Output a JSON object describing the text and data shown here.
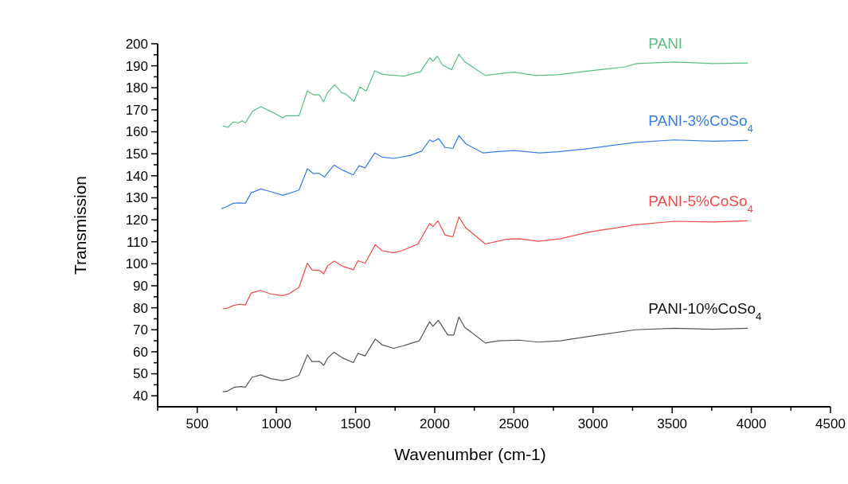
{
  "chart_data": {
    "type": "line",
    "xlabel": "Wavenumber (cm-1)",
    "ylabel": "Transmission",
    "xlim": [
      250,
      4500
    ],
    "xticks": [
      {
        "value": 250,
        "label": null
      },
      500,
      {
        "value": 750,
        "label": null
      },
      1000,
      {
        "value": 1250,
        "label": null
      },
      1500,
      {
        "value": 1750,
        "label": null
      },
      2000,
      {
        "value": 2250,
        "label": null
      },
      2500,
      {
        "value": 2750,
        "label": null
      },
      3000,
      {
        "value": 3250,
        "label": null
      },
      3500,
      {
        "value": 3750,
        "label": null
      },
      4000,
      {
        "value": 4250,
        "label": null
      },
      4500
    ],
    "ylim": [
      35,
      200
    ],
    "yticks": [
      40,
      {
        "value": 45,
        "label": null
      },
      50,
      {
        "value": 55,
        "label": null
      },
      60,
      {
        "value": 65,
        "label": null
      },
      70,
      {
        "value": 75,
        "label": null
      },
      80,
      {
        "value": 85,
        "label": null
      },
      90,
      {
        "value": 95,
        "label": null
      },
      100,
      {
        "value": 105,
        "label": null
      },
      110,
      {
        "value": 115,
        "label": null
      },
      120,
      {
        "value": 125,
        "label": null
      },
      130,
      {
        "value": 135,
        "label": null
      },
      140,
      {
        "value": 145,
        "label": null
      },
      150,
      {
        "value": 155,
        "label": null
      },
      160,
      {
        "value": 165,
        "label": null
      },
      170,
      {
        "value": 175,
        "label": null
      },
      180,
      {
        "value": 185,
        "label": null
      },
      190,
      {
        "value": 195,
        "label": null
      },
      200
    ],
    "grid": false,
    "marker": "none",
    "line_style": "solid",
    "series": [
      {
        "name": "PANI",
        "color": "#5bbf85",
        "x": [
          661,
          694,
          727,
          759,
          784,
          804,
          849,
          902,
          964,
          1042,
          1058,
          1143,
          1196,
          1233,
          1271,
          1298,
          1323,
          1369,
          1413,
          1438,
          1490,
          1527,
          1568,
          1622,
          1666,
          1698,
          1805,
          1911,
          1969,
          1989,
          2017,
          2050,
          2107,
          2153,
          2189,
          2255,
          2320,
          2385,
          2500,
          2638,
          2777,
          2941,
          3202,
          3276,
          3513,
          3758,
          3978
        ],
        "values": [
          162.7,
          162,
          164.5,
          164,
          165,
          164,
          169.3,
          171.4,
          169.3,
          166.3,
          167.3,
          167.3,
          178.6,
          176.8,
          176.8,
          173.6,
          177.8,
          181.4,
          177.8,
          177.2,
          173.8,
          180.4,
          178.6,
          187.7,
          186.2,
          185.9,
          185.3,
          187.4,
          193.6,
          192.1,
          194.3,
          190.3,
          188.2,
          195.3,
          191.9,
          188.7,
          185.6,
          186.2,
          187.1,
          185.6,
          185.9,
          187.4,
          189.5,
          191,
          191.7,
          191,
          191.3
        ]
      },
      {
        "name": "PANI-3%CoSo$_{4}$",
        "color": "#3a7de0",
        "x": [
          653,
          686,
          727,
          768,
          804,
          841,
          902,
          964,
          1042,
          1143,
          1196,
          1233,
          1266,
          1304,
          1364,
          1421,
          1486,
          1522,
          1560,
          1622,
          1666,
          1740,
          1845,
          1919,
          1968,
          1989,
          2025,
          2066,
          2115,
          2153,
          2197,
          2304,
          2385,
          2500,
          2663,
          2777,
          2941,
          3267,
          3513,
          3758,
          3978
        ],
        "values": [
          125,
          126,
          127.5,
          127.7,
          127.5,
          132.3,
          134,
          132.8,
          131.1,
          133.5,
          143.2,
          141,
          141.2,
          139.5,
          144.9,
          142.5,
          140.4,
          144.6,
          143.6,
          150.4,
          148.5,
          147.9,
          149.2,
          151.3,
          156.3,
          155.5,
          156.9,
          152.8,
          152.5,
          158.3,
          154.5,
          150.4,
          150.9,
          151.5,
          150.4,
          150.9,
          152.1,
          155.2,
          156.3,
          155.7,
          156.1
        ]
      },
      {
        "name": "PANI-5%CoSo$_{4}$",
        "color": "#f04a4a",
        "x": [
          661,
          686,
          727,
          768,
          804,
          841,
          897,
          964,
          1037,
          1078,
          1143,
          1196,
          1225,
          1274,
          1299,
          1323,
          1364,
          1421,
          1486,
          1516,
          1560,
          1625,
          1666,
          1740,
          1796,
          1894,
          1968,
          1989,
          2021,
          2066,
          2115,
          2153,
          2197,
          2320,
          2451,
          2532,
          2655,
          2794,
          2973,
          3267,
          3513,
          3758,
          3978
        ],
        "values": [
          79.5,
          79.7,
          81,
          81.6,
          81.3,
          86.7,
          87.9,
          86.3,
          85.5,
          86.3,
          89.3,
          100.3,
          97.2,
          96.9,
          95.4,
          99,
          101.2,
          98.8,
          97.3,
          101.4,
          100.2,
          108.7,
          106,
          105,
          106,
          109,
          118.3,
          116.9,
          119.5,
          113,
          112.3,
          121.3,
          116.3,
          109,
          111.1,
          111.4,
          110.2,
          111.4,
          114.4,
          117.7,
          119.3,
          119,
          119.5
        ]
      },
      {
        "name": "PANI-10%CoSo$_{4}$",
        "color": "#555555",
        "x": [
          661,
          686,
          735,
          776,
          804,
          846,
          902,
          964,
          1037,
          1078,
          1143,
          1196,
          1225,
          1274,
          1299,
          1323,
          1364,
          1421,
          1486,
          1516,
          1560,
          1625,
          1666,
          1740,
          1796,
          1903,
          1968,
          1989,
          2023,
          2083,
          2120,
          2153,
          2189,
          2320,
          2402,
          2532,
          2655,
          2794,
          2973,
          3267,
          3513,
          3758,
          3978
        ],
        "values": [
          41.8,
          42,
          43.9,
          44.2,
          43.9,
          48.4,
          49.5,
          47.8,
          46.9,
          47.5,
          49.3,
          58.6,
          55.6,
          55.6,
          53.8,
          57.1,
          59.8,
          57.1,
          55.1,
          59.3,
          58.1,
          65.8,
          63.2,
          61.6,
          62.6,
          65,
          73.7,
          71.6,
          74.3,
          67.6,
          67.6,
          75.8,
          71.2,
          64,
          65,
          65.3,
          64.4,
          65,
          67,
          70,
          70.7,
          70.2,
          70.7
        ]
      }
    ]
  }
}
